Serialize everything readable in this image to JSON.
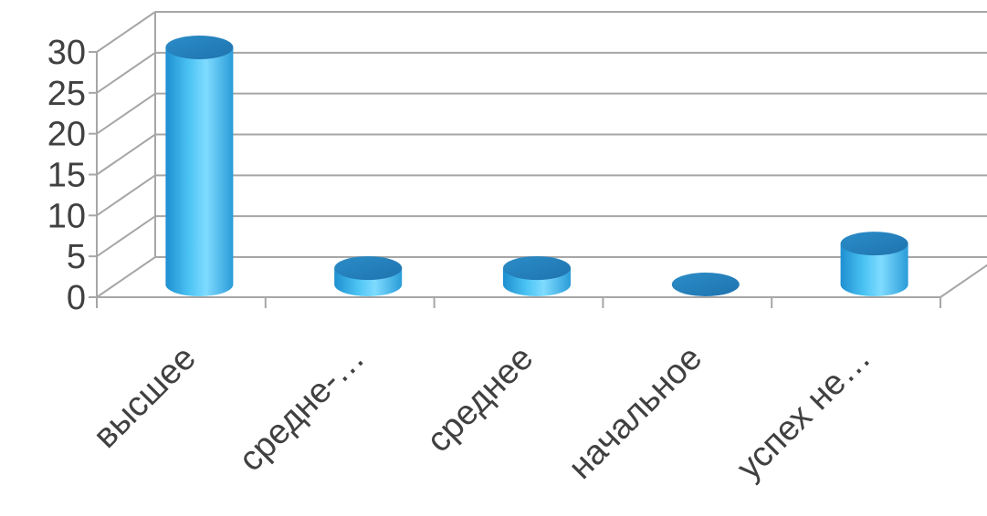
{
  "chart_data": {
    "type": "bar",
    "style": "3d-cylinder",
    "categories": [
      "высшее",
      "средне-…",
      "среднее",
      "начальное",
      "успех не…"
    ],
    "values": [
      29,
      2,
      2,
      0,
      5
    ],
    "ylim": [
      0,
      30
    ],
    "yticks": [
      0,
      5,
      10,
      15,
      20,
      25,
      30
    ],
    "grid": true,
    "legend": "none",
    "colors": {
      "bar_body": "#3FB7EC",
      "bar_top": "#2E8FC7",
      "grid": "#A6A6A6",
      "text": "#404040"
    }
  }
}
